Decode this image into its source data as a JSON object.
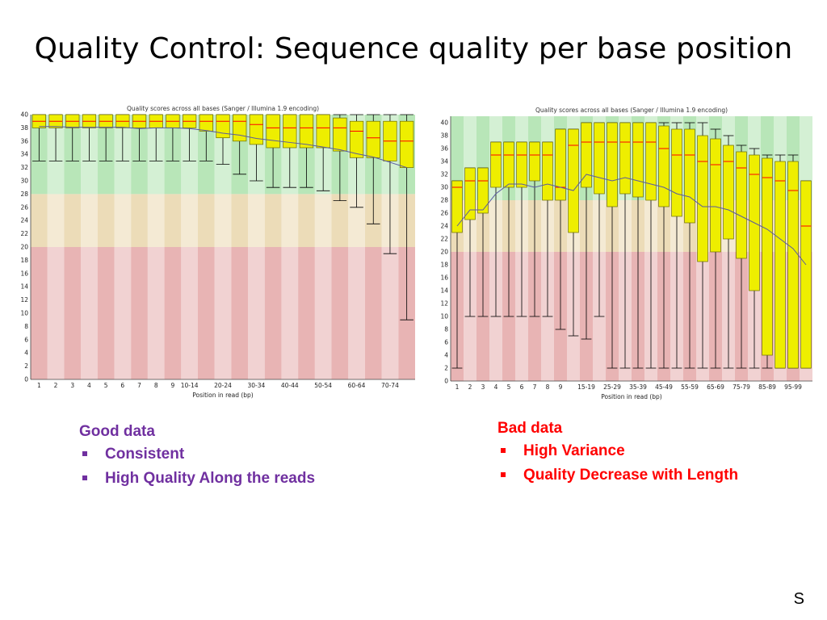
{
  "slide": {
    "title": "Quality Control: Sequence quality per base position",
    "page_marker": "S",
    "good": {
      "heading": "Good data",
      "bullets": [
        "Consistent",
        "High Quality Along the reads"
      ]
    },
    "bad": {
      "heading": "Bad data",
      "bullets": [
        "High Variance",
        "Quality Decrease with Length"
      ]
    }
  },
  "colors": {
    "band_good": "#b8e6b8",
    "band_ok": "#ecdcb8",
    "band_bad": "#e8b4b4",
    "box_fill": "#eeee00",
    "box_stroke": "#6b6b00",
    "median": "#ff0000",
    "mean_line": "#5a5aa0",
    "whisker": "#000000",
    "good_caption": "#7030a0",
    "bad_caption": "#ff0000"
  },
  "chart_data": [
    {
      "type": "box",
      "title": "Quality scores across all bases (Sanger / Illumina 1.9 encoding)",
      "xlabel": "Position in read (bp)",
      "ylim": [
        0,
        40
      ],
      "yticks": [
        0,
        2,
        4,
        6,
        8,
        10,
        12,
        14,
        16,
        18,
        20,
        22,
        24,
        26,
        28,
        30,
        32,
        34,
        36,
        38,
        40
      ],
      "bands": [
        {
          "from": 28,
          "to": 40,
          "class": "good"
        },
        {
          "from": 20,
          "to": 28,
          "class": "ok"
        },
        {
          "from": 0,
          "to": 20,
          "class": "bad"
        }
      ],
      "categories": [
        "1",
        "2",
        "3",
        "4",
        "5",
        "6",
        "7",
        "8",
        "9",
        "10-14",
        "15-19",
        "20-24",
        "25-29",
        "30-34",
        "35-39",
        "40-44",
        "45-49",
        "50-54",
        "55-59",
        "60-64",
        "65-69",
        "70-74",
        "75"
      ],
      "xtick_labels": [
        "1",
        "2",
        "3",
        "4",
        "5",
        "6",
        "7",
        "8",
        "9",
        "10-14",
        "",
        "20-24",
        "",
        "30-34",
        "",
        "40-44",
        "",
        "50-54",
        "",
        "60-64",
        "",
        "70-74",
        ""
      ],
      "boxes": [
        {
          "q1": 38,
          "median": 39,
          "q3": 40,
          "low": 33,
          "high": 40
        },
        {
          "q1": 38,
          "median": 39,
          "q3": 40,
          "low": 33,
          "high": 40
        },
        {
          "q1": 38,
          "median": 39,
          "q3": 40,
          "low": 33,
          "high": 40
        },
        {
          "q1": 38,
          "median": 39,
          "q3": 40,
          "low": 33,
          "high": 40
        },
        {
          "q1": 38,
          "median": 39,
          "q3": 40,
          "low": 33,
          "high": 40
        },
        {
          "q1": 38,
          "median": 39,
          "q3": 40,
          "low": 33,
          "high": 40
        },
        {
          "q1": 38,
          "median": 39,
          "q3": 40,
          "low": 33,
          "high": 40
        },
        {
          "q1": 38,
          "median": 39,
          "q3": 40,
          "low": 33,
          "high": 40
        },
        {
          "q1": 38,
          "median": 39,
          "q3": 40,
          "low": 33,
          "high": 40
        },
        {
          "q1": 38,
          "median": 39,
          "q3": 40,
          "low": 33,
          "high": 40
        },
        {
          "q1": 37.5,
          "median": 39,
          "q3": 40,
          "low": 33,
          "high": 40
        },
        {
          "q1": 36.5,
          "median": 39,
          "q3": 40,
          "low": 32.5,
          "high": 40
        },
        {
          "q1": 36,
          "median": 39,
          "q3": 40,
          "low": 31,
          "high": 40
        },
        {
          "q1": 35.5,
          "median": 38.5,
          "q3": 40,
          "low": 30,
          "high": 40
        },
        {
          "q1": 35,
          "median": 38,
          "q3": 40,
          "low": 29,
          "high": 40
        },
        {
          "q1": 35,
          "median": 38,
          "q3": 40,
          "low": 29,
          "high": 40
        },
        {
          "q1": 35,
          "median": 38,
          "q3": 40,
          "low": 29,
          "high": 40
        },
        {
          "q1": 35,
          "median": 38,
          "q3": 40,
          "low": 28.5,
          "high": 40
        },
        {
          "q1": 34.5,
          "median": 38,
          "q3": 39.5,
          "low": 27,
          "high": 40
        },
        {
          "q1": 33.5,
          "median": 37.5,
          "q3": 39,
          "low": 26,
          "high": 40
        },
        {
          "q1": 33.5,
          "median": 36.5,
          "q3": 39,
          "low": 23.5,
          "high": 40
        },
        {
          "q1": 33,
          "median": 36,
          "q3": 39,
          "low": 19,
          "high": 40
        },
        {
          "q1": 32,
          "median": 36,
          "q3": 39,
          "low": 9,
          "high": 40
        }
      ],
      "mean": [
        38.2,
        38.2,
        38.1,
        38.1,
        38.1,
        38.1,
        37.9,
        38,
        38,
        37.9,
        37.6,
        37.2,
        36.9,
        36.4,
        36.1,
        35.8,
        35.5,
        35.1,
        34.7,
        34.1,
        33.6,
        32.8,
        32
      ]
    },
    {
      "type": "box",
      "title": "Quality scores across all bases (Sanger / Illumina 1.9 encoding)",
      "xlabel": "Position in read (bp)",
      "ylim": [
        0,
        41
      ],
      "yticks": [
        0,
        2,
        4,
        6,
        8,
        10,
        12,
        14,
        16,
        18,
        20,
        22,
        24,
        26,
        28,
        30,
        32,
        34,
        36,
        38,
        40
      ],
      "bands": [
        {
          "from": 28,
          "to": 41,
          "class": "good"
        },
        {
          "from": 20,
          "to": 28,
          "class": "ok"
        },
        {
          "from": 0,
          "to": 20,
          "class": "bad"
        }
      ],
      "categories": [
        "1",
        "2",
        "3",
        "4",
        "5",
        "6",
        "7",
        "8",
        "9",
        "10-14",
        "15-19",
        "20-24",
        "25-29",
        "30-34",
        "35-39",
        "40-44",
        "45-49",
        "50-54",
        "55-59",
        "60-64",
        "65-69",
        "70-74",
        "75-79",
        "80-84",
        "85-89",
        "90-94",
        "95-99",
        "100"
      ],
      "xtick_labels": [
        "1",
        "2",
        "3",
        "4",
        "5",
        "6",
        "7",
        "8",
        "9",
        "",
        "15-19",
        "",
        "25-29",
        "",
        "35-39",
        "",
        "45-49",
        "",
        "55-59",
        "",
        "65-69",
        "",
        "75-79",
        "",
        "85-89",
        "",
        "95-99",
        ""
      ],
      "boxes": [
        {
          "q1": 23,
          "median": 30,
          "q3": 31,
          "low": 2,
          "high": 31
        },
        {
          "q1": 25,
          "median": 31,
          "q3": 33,
          "low": 10,
          "high": 33
        },
        {
          "q1": 26,
          "median": 31,
          "q3": 33,
          "low": 10,
          "high": 33
        },
        {
          "q1": 30,
          "median": 35,
          "q3": 37,
          "low": 10,
          "high": 37
        },
        {
          "q1": 30,
          "median": 35,
          "q3": 37,
          "low": 10,
          "high": 37
        },
        {
          "q1": 30,
          "median": 35,
          "q3": 37,
          "low": 10,
          "high": 37
        },
        {
          "q1": 31,
          "median": 35,
          "q3": 37,
          "low": 10,
          "high": 37
        },
        {
          "q1": 28,
          "median": 35,
          "q3": 37,
          "low": 10,
          "high": 37
        },
        {
          "q1": 28,
          "median": 30,
          "q3": 39,
          "low": 8,
          "high": 39
        },
        {
          "q1": 23,
          "median": 36.5,
          "q3": 39,
          "low": 7,
          "high": 39
        },
        {
          "q1": 30,
          "median": 37,
          "q3": 40,
          "low": 6.5,
          "high": 40
        },
        {
          "q1": 29,
          "median": 37,
          "q3": 40,
          "low": 10,
          "high": 40
        },
        {
          "q1": 27,
          "median": 37,
          "q3": 40,
          "low": 2,
          "high": 40
        },
        {
          "q1": 29,
          "median": 37,
          "q3": 40,
          "low": 2,
          "high": 40
        },
        {
          "q1": 28.5,
          "median": 37,
          "q3": 40,
          "low": 2,
          "high": 40
        },
        {
          "q1": 28,
          "median": 37,
          "q3": 40,
          "low": 2,
          "high": 40
        },
        {
          "q1": 27,
          "median": 36,
          "q3": 39.5,
          "low": 2,
          "high": 40
        },
        {
          "q1": 25.5,
          "median": 35,
          "q3": 39,
          "low": 2,
          "high": 40
        },
        {
          "q1": 24.5,
          "median": 35,
          "q3": 39,
          "low": 2,
          "high": 40
        },
        {
          "q1": 18.5,
          "median": 34,
          "q3": 38,
          "low": 2,
          "high": 40
        },
        {
          "q1": 20,
          "median": 33.5,
          "q3": 37.5,
          "low": 2,
          "high": 39
        },
        {
          "q1": 22,
          "median": 34,
          "q3": 36.5,
          "low": 2,
          "high": 38
        },
        {
          "q1": 19,
          "median": 33,
          "q3": 35.5,
          "low": 2,
          "high": 36.5
        },
        {
          "q1": 14,
          "median": 32,
          "q3": 35,
          "low": 2,
          "high": 36
        },
        {
          "q1": 4,
          "median": 31.5,
          "q3": 34.5,
          "low": 2,
          "high": 35
        },
        {
          "q1": 2,
          "median": 31,
          "q3": 34,
          "low": 2,
          "high": 35
        },
        {
          "q1": 2,
          "median": 29.5,
          "q3": 34,
          "low": 2,
          "high": 35
        },
        {
          "q1": 2,
          "median": 24,
          "q3": 31,
          "low": 2,
          "high": 31
        }
      ],
      "mean": [
        24,
        26.5,
        26.5,
        29,
        30.5,
        30.5,
        30,
        30.5,
        30,
        29.5,
        32,
        31.5,
        31,
        31.5,
        31,
        30.5,
        30,
        29,
        28.5,
        27,
        27,
        26.5,
        25.5,
        24.5,
        23.5,
        22,
        20.5,
        18
      ]
    }
  ]
}
